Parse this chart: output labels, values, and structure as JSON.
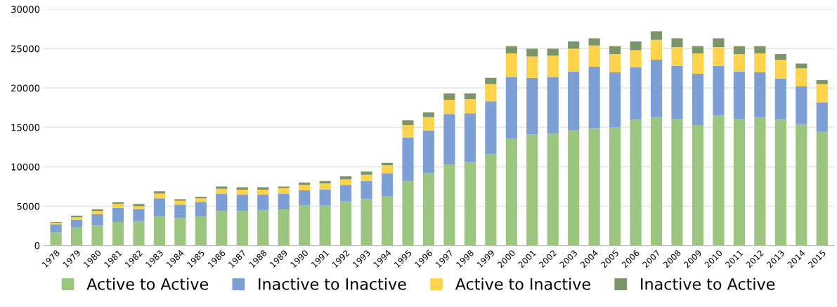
{
  "chart_data": {
    "type": "bar",
    "stacked": true,
    "categories": [
      "1978",
      "1979",
      "1980",
      "1981",
      "1982",
      "1983",
      "1984",
      "1985",
      "1986",
      "1987",
      "1988",
      "1989",
      "1990",
      "1991",
      "1992",
      "1993",
      "1994",
      "1995",
      "1996",
      "1997",
      "1998",
      "1999",
      "2000",
      "2001",
      "2002",
      "2003",
      "2004",
      "2005",
      "2006",
      "2007",
      "2008",
      "2009",
      "2010",
      "2011",
      "2012",
      "2013",
      "2014",
      "2015"
    ],
    "series": [
      {
        "name": "Active to Active",
        "color": "#9cc57f",
        "values": [
          1700,
          2300,
          2600,
          3000,
          3100,
          3800,
          3500,
          3700,
          4400,
          4400,
          4500,
          4600,
          5100,
          5100,
          5600,
          5900,
          6300,
          8200,
          9200,
          10300,
          10600,
          11600,
          13600,
          14100,
          14200,
          14600,
          14900,
          15000,
          16000,
          16300,
          16100,
          15300,
          16500,
          16100,
          16300,
          16000,
          15400,
          14500
        ]
      },
      {
        "name": "Inactive to Inactive",
        "color": "#7c9fd6",
        "values": [
          1000,
          1000,
          1400,
          1800,
          1500,
          2200,
          1700,
          1800,
          2200,
          2100,
          2000,
          2000,
          1900,
          2000,
          2100,
          2300,
          2900,
          5500,
          5400,
          6400,
          6200,
          6700,
          7800,
          7200,
          7200,
          7500,
          7800,
          7000,
          6600,
          7300,
          6700,
          6500,
          6300,
          6000,
          5700,
          5200,
          4800,
          3700
        ]
      },
      {
        "name": "Active to Inactive",
        "color": "#fdd34c",
        "values": [
          200,
          300,
          400,
          500,
          400,
          600,
          500,
          500,
          600,
          600,
          600,
          700,
          700,
          800,
          700,
          800,
          1000,
          1600,
          1700,
          1800,
          1800,
          2200,
          3000,
          2700,
          2700,
          2900,
          2700,
          2300,
          2200,
          2500,
          2400,
          2600,
          2400,
          2200,
          2400,
          2400,
          2300,
          2300
        ]
      },
      {
        "name": "Inactive to Active",
        "color": "#7a9668",
        "values": [
          100,
          200,
          200,
          200,
          300,
          300,
          200,
          200,
          300,
          300,
          300,
          200,
          300,
          300,
          400,
          400,
          300,
          600,
          600,
          800,
          700,
          800,
          900,
          1000,
          900,
          900,
          900,
          1000,
          1100,
          1100,
          1100,
          900,
          1100,
          1000,
          900,
          700,
          600,
          500
        ]
      }
    ],
    "ylim": [
      0,
      30000
    ],
    "yticks": [
      0,
      5000,
      10000,
      15000,
      20000,
      25000,
      30000
    ],
    "grid": "y",
    "legend": "bottom"
  }
}
